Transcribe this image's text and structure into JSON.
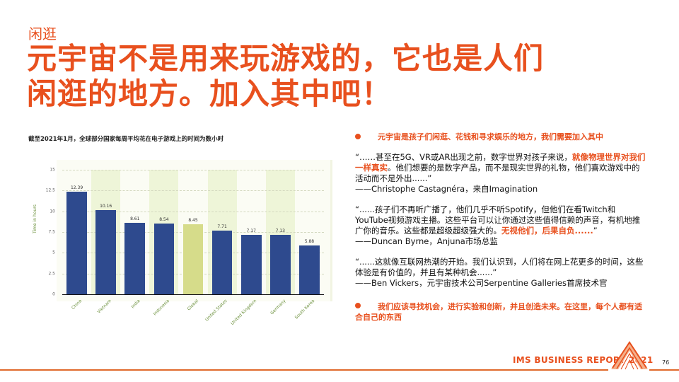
{
  "header": {
    "kicker": "闲逛",
    "title_line1": "元宇宙不是用来玩游戏的，它也是人们",
    "title_line2": "闲逛的地方。加入其中吧！"
  },
  "chart_caption": "截至2021年1月，全球部分国家每周平均花在电子游戏上的时间为数小时",
  "chart_data": {
    "type": "bar",
    "title": "截至2021年1月，全球部分国家每周平均花在电子游戏上的时间为数小时",
    "xlabel": "",
    "ylabel": "Time in hours",
    "ylim": [
      0,
      15
    ],
    "yticks": [
      "0",
      "2.5",
      "5",
      "7.5",
      "10",
      "12.5",
      "15"
    ],
    "grid": true,
    "categories": [
      "China",
      "Vietnam",
      "India",
      "Indonesia",
      "Global",
      "United States",
      "United Kingdom",
      "Germany",
      "South Korea"
    ],
    "values": [
      12.39,
      10.16,
      8.61,
      8.54,
      8.45,
      7.71,
      7.17,
      7.13,
      5.88
    ],
    "value_labels": [
      "12.39",
      "10.16",
      "8.61",
      "8.54",
      "8.45",
      "7.71",
      "7.17",
      "7.13",
      "5.88"
    ],
    "colors": {
      "bar": "#2e4a8e",
      "highlight_bar": "#d6dc8a",
      "column_band": "#eef5d8"
    },
    "highlighted_category": "Global"
  },
  "right_panel": {
    "bullet1": "元宇宙是孩子们闲逛、花钱和寻求娱乐的地方，我们需要加入其中",
    "quote1": {
      "pre": "“……甚至在5G、VR或AR出现之前，数字世界对孩子来说，",
      "highlight": "就像物理世界对我们一样真实",
      "post": "。他们想要的是数字产品，而不是现实世界的礼物，他们喜欢游戏中的活动而不是外出......”",
      "attribution": "——Christophe Castagnéra，来自Imagination"
    },
    "quote2": {
      "pre": "“......孩子们不再听广播了，他们几乎不听Spotify，但他们在看Twitch和YouTube视频游戏主播。这些平台可以让你通过这些值得信赖的声音，有机地推广你的音乐。这些都是超级超级强大的。",
      "highlight": "无视他们，后果自负......",
      "post": "”",
      "attribution": "——Duncan Byrne，Anjuna市场总监"
    },
    "quote3": {
      "text": "“......这就像互联网热潮的开始。我们认识到，人们将在网上花更多的时间，这些体验是有价值的，并且有某种机会......”",
      "attribution": "——Ben Vickers，元宇宙技术公司Serpentine Galleries首席技术官"
    },
    "bullet2": "我们应该寻找机会，进行实验和创新，并且创造未来。在这里，每个人都有适合自己的东西"
  },
  "footer": {
    "brand": "IMS BUSINESS REPORT 2021",
    "page_number": "76",
    "accent_color": "#e8501e"
  }
}
